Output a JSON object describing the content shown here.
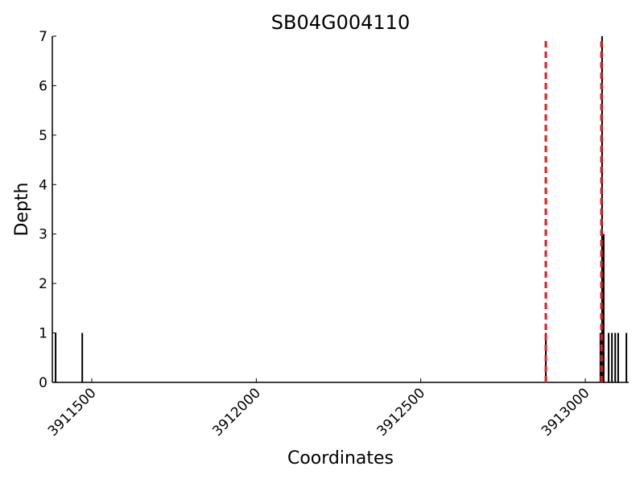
{
  "chart_data": {
    "type": "stem",
    "title": "SB04G004110",
    "xlabel": "Coordinates",
    "ylabel": "Depth",
    "x": [
      3911390,
      3911471,
      3912880,
      3913046,
      3913051,
      3913056,
      3913071,
      3913081,
      3913091,
      3913100,
      3913125
    ],
    "values": [
      1,
      1,
      1,
      1,
      7,
      3,
      1,
      1,
      1,
      1,
      1
    ],
    "color": "#000000",
    "markers": {
      "x": [
        3912880,
        3913049
      ],
      "color": "#e41a1c",
      "style": "dashed"
    },
    "xlim": [
      3911380,
      3913132
    ],
    "xticks": [
      3911500,
      3912000,
      3912500,
      3913000
    ],
    "ylim": [
      0,
      7
    ],
    "yticks": [
      0,
      1,
      2,
      3,
      4,
      5,
      6,
      7
    ]
  }
}
